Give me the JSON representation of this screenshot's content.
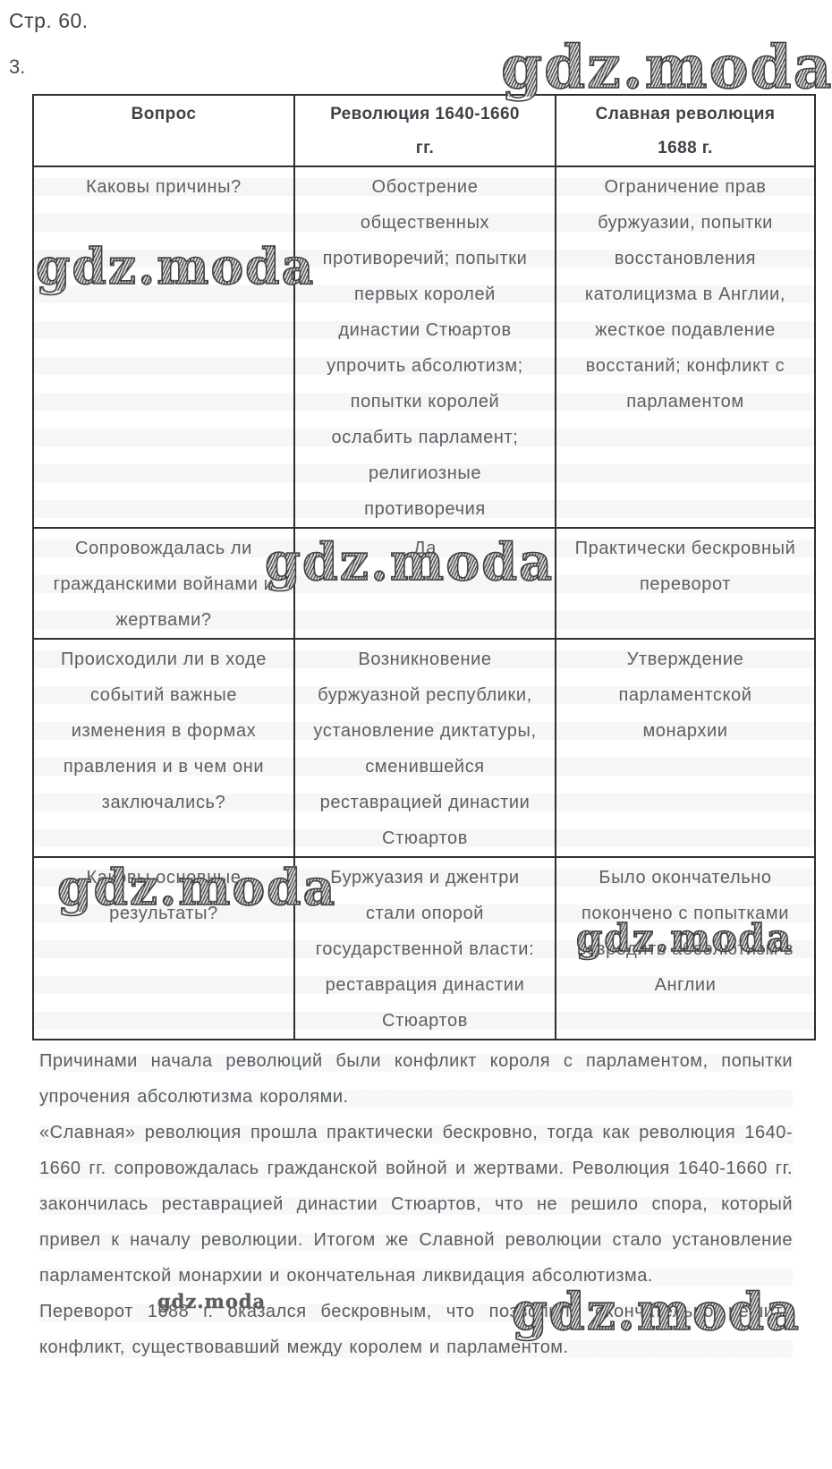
{
  "page": {
    "label": "Стр. 60.",
    "item_number": "3."
  },
  "watermark": {
    "text": "gdz.moda"
  },
  "colors": {
    "body_text": "#5a6066",
    "heading_text": "#3d434a",
    "table_border": "#2c2e30",
    "background": "#ffffff"
  },
  "table": {
    "headers": [
      "Вопрос",
      "Революция 1640-1660\nгг.",
      "Славная революция\n1688 г."
    ],
    "rows": [
      [
        "Каковы причины?",
        "Обострение\nобщественных\nпротиворечий; попытки\nпервых королей\nдинастии Стюартов\nупрочить абсолютизм;\nпопытки королей\nослабить парламент;\nрелигиозные\nпротиворечия",
        "Ограничение прав\nбуржуазии, попытки\nвосстановления\nкатолицизма в Англии,\nжесткое подавление\nвосстаний; конфликт с\nпарламентом"
      ],
      [
        "Сопровождалась ли\nгражданскими войнами и\nжертвами?",
        "Да",
        "Практически бескровный\nпереворот"
      ],
      [
        "Происходили ли в ходе\nсобытий важные\nизменения в формах\nправления и в чем они\nзаключались?",
        "Возникновение\nбуржуазной республики,\nустановление диктатуры,\nсменившейся\nреставрацией династии\nСтюартов",
        "Утверждение\nпарламентской\nмонархии"
      ],
      [
        "Каковы основные\nрезультаты?",
        "Буржуазия и джентри\nстали опорой\nгосударственной власти:\nреставрация династии\nСтюартов",
        "Было окончательно\nпокончено с попытками\nвозродить абсолютизм в\nАнглии"
      ]
    ]
  },
  "answers": [
    "Причинами начала революций были конфликт короля с парламентом, попытки упрочения абсолютизма королями.",
    "«Славная» революция прошла практически бескровно, тогда как революция 1640-1660 гг. сопровождалась гражданской войной и жертвами. Революция 1640-1660 гг. закончилась реставрацией династии Стюартов, что не решило спора, который привел к началу революции. Итогом же Славной революции стало установление парламентской монархии и окончательная ликвидация абсолютизма.",
    "Переворот 1688 г. оказался бескровным, что позволило окончательно решить конфликт, существовавший между королем и парламентом."
  ]
}
